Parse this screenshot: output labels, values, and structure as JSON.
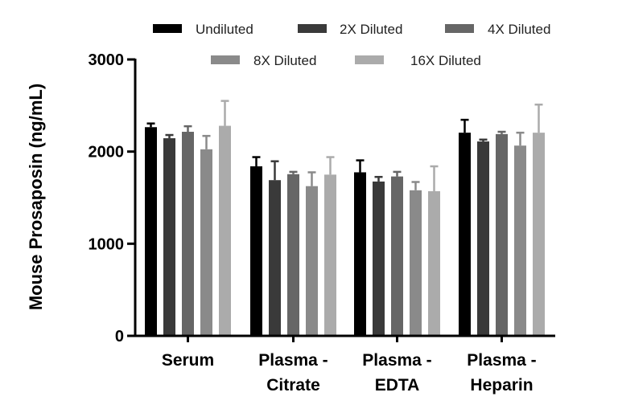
{
  "chart_data": {
    "type": "bar",
    "title": "",
    "xlabel": "",
    "ylabel": "Mouse Prosaposin (ng/mL)",
    "ylim": [
      0,
      3000
    ],
    "yticks": [
      "0",
      "1000",
      "2000",
      "3000"
    ],
    "categories": [
      [
        "Serum"
      ],
      [
        "Plasma -",
        "Citrate"
      ],
      [
        "Plasma -",
        "EDTA"
      ],
      [
        "Plasma -",
        "Heparin"
      ]
    ],
    "series": [
      {
        "name": "Undiluted",
        "color": "#000000",
        "values": [
          2265,
          1840,
          1775,
          2205
        ],
        "errors": [
          40,
          100,
          130,
          140
        ]
      },
      {
        "name": "2X Diluted",
        "color": "#3a3a3a",
        "values": [
          2145,
          1690,
          1675,
          2110
        ],
        "errors": [
          35,
          205,
          50,
          20
        ]
      },
      {
        "name": "4X Diluted",
        "color": "#666666",
        "values": [
          2215,
          1755,
          1730,
          2190
        ],
        "errors": [
          60,
          25,
          50,
          25
        ]
      },
      {
        "name": "8X Diluted",
        "color": "#8a8a8a",
        "values": [
          2025,
          1625,
          1580,
          2065
        ],
        "errors": [
          145,
          150,
          90,
          140
        ]
      },
      {
        "name": "16X Diluted",
        "color": "#ababab",
        "values": [
          2280,
          1750,
          1570,
          2205
        ],
        "errors": [
          270,
          190,
          270,
          305
        ]
      }
    ],
    "legend_position": "top"
  }
}
